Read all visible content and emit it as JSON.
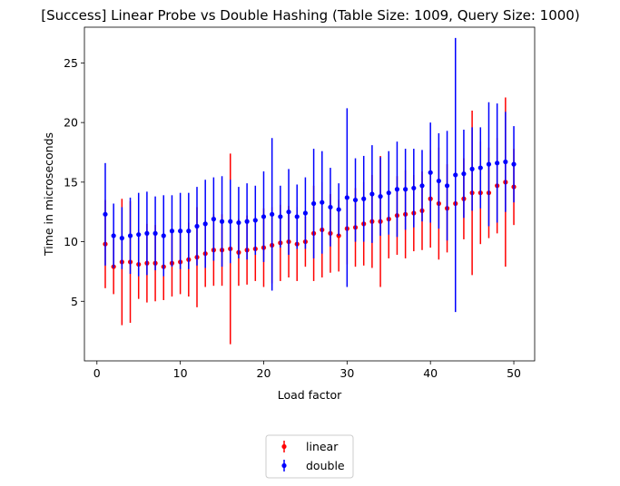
{
  "chart_data": {
    "type": "scatter",
    "title": "[Success] Linear Probe vs Double Hashing (Table Size: 1009, Query Size: 1000)",
    "xlabel": "Load factor",
    "ylabel": "Time in microseconds",
    "xlim": [
      -1.5,
      52.5
    ],
    "ylim": [
      0,
      28
    ],
    "xticks": [
      0,
      10,
      20,
      30,
      40,
      50
    ],
    "yticks": [
      5,
      10,
      15,
      20,
      25
    ],
    "grid": false,
    "legend": "bottom-center, below plot",
    "colors": {
      "linear": "#ff0000",
      "double": "#0000ff"
    },
    "x": [
      1,
      2,
      3,
      4,
      5,
      6,
      7,
      8,
      9,
      10,
      11,
      12,
      13,
      14,
      15,
      16,
      17,
      18,
      19,
      20,
      21,
      22,
      23,
      24,
      25,
      26,
      27,
      28,
      29,
      30,
      31,
      32,
      33,
      34,
      35,
      36,
      37,
      38,
      39,
      40,
      41,
      42,
      43,
      44,
      45,
      46,
      47,
      48,
      49,
      50
    ],
    "series": [
      {
        "name": "linear",
        "color": "#ff0000",
        "values": [
          9.8,
          7.9,
          8.3,
          8.3,
          8.1,
          8.2,
          8.2,
          7.9,
          8.2,
          8.3,
          8.5,
          8.7,
          9.0,
          9.3,
          9.3,
          9.4,
          9.1,
          9.3,
          9.4,
          9.5,
          9.7,
          9.9,
          10.0,
          9.8,
          10.0,
          10.7,
          11.0,
          10.7,
          10.5,
          11.1,
          11.2,
          11.5,
          11.7,
          11.7,
          11.9,
          12.2,
          12.3,
          12.4,
          12.6,
          13.6,
          13.2,
          12.8,
          13.2,
          13.6,
          14.1,
          14.1,
          14.1,
          14.7,
          15.0,
          14.6
        ],
        "err": [
          3.7,
          2.3,
          5.3,
          5.1,
          2.9,
          3.3,
          3.2,
          2.8,
          2.8,
          2.7,
          3.1,
          4.2,
          2.8,
          3.0,
          3.0,
          8.0,
          2.8,
          2.9,
          2.7,
          3.3,
          3.2,
          3.2,
          3.0,
          3.1,
          2.1,
          4.0,
          4.0,
          3.3,
          3.0,
          3.0,
          3.3,
          3.5,
          3.9,
          5.5,
          3.3,
          3.3,
          3.7,
          3.2,
          3.3,
          4.1,
          4.7,
          3.7,
          3.0,
          3.4,
          6.9,
          4.3,
          3.8,
          4.0,
          7.1,
          3.2
        ]
      },
      {
        "name": "double",
        "color": "#0000ff",
        "values": [
          12.3,
          10.5,
          10.3,
          10.5,
          10.6,
          10.7,
          10.7,
          10.5,
          10.9,
          10.9,
          10.9,
          11.3,
          11.5,
          11.9,
          11.7,
          11.7,
          11.6,
          11.7,
          11.8,
          12.1,
          12.3,
          12.1,
          12.5,
          12.1,
          12.4,
          13.2,
          13.3,
          12.9,
          12.7,
          13.7,
          13.5,
          13.6,
          14.0,
          13.8,
          14.1,
          14.4,
          14.4,
          14.5,
          14.7,
          15.8,
          15.1,
          14.7,
          15.6,
          15.7,
          16.1,
          16.2,
          16.5,
          16.6,
          16.7,
          16.5
        ],
        "err": [
          4.3,
          2.7,
          2.6,
          3.2,
          3.5,
          3.5,
          3.1,
          3.4,
          3.0,
          3.2,
          3.2,
          3.3,
          3.7,
          3.5,
          3.8,
          3.5,
          3.0,
          3.2,
          2.9,
          3.8,
          6.4,
          2.6,
          3.6,
          2.7,
          3.0,
          4.6,
          4.3,
          3.3,
          2.2,
          7.5,
          3.5,
          3.6,
          4.1,
          3.3,
          3.5,
          4.0,
          3.4,
          3.3,
          3.0,
          4.2,
          4.0,
          4.6,
          11.5,
          3.7,
          3.5,
          3.4,
          5.2,
          5.0,
          4.2,
          3.2
        ]
      }
    ]
  }
}
